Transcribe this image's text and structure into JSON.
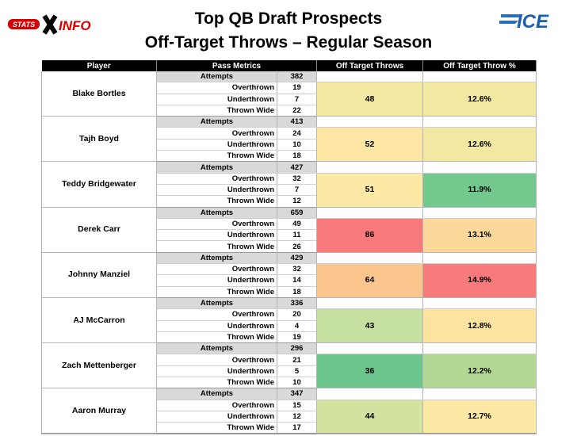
{
  "header": {
    "left_logo_text": "STATS INFO",
    "right_logo_text": "ICE",
    "title_line1": "Top QB Draft Prospects",
    "title_line2": "Off-Target Throws – Regular Season"
  },
  "columns": {
    "player": "Player",
    "pass_metrics": "Pass Metrics",
    "off_target": "Off Target Throws",
    "off_target_pct": "Off Target Throw %"
  },
  "metric_labels": {
    "attempts": "Attempts",
    "overthrown": "Overthrown",
    "underthrown": "Underthrown",
    "thrown_wide": "Thrown Wide"
  },
  "players": [
    {
      "name": "Blake Bortles",
      "attempts": "382",
      "overthrown": "19",
      "underthrown": "7",
      "thrown_wide": "22",
      "off_target": "48",
      "pct": "12.6%",
      "off_color": "#f2e8a2",
      "pct_color": "#f2e8a2"
    },
    {
      "name": "Tajh Boyd",
      "attempts": "413",
      "overthrown": "24",
      "underthrown": "10",
      "thrown_wide": "18",
      "off_target": "52",
      "pct": "12.6%",
      "off_color": "#fde6a4",
      "pct_color": "#f2e8a2"
    },
    {
      "name": "Teddy Bridgewater",
      "attempts": "427",
      "overthrown": "32",
      "underthrown": "7",
      "thrown_wide": "12",
      "off_target": "51",
      "pct": "11.9%",
      "off_color": "#fde9a6",
      "pct_color": "#73c88e"
    },
    {
      "name": "Derek Carr",
      "attempts": "659",
      "overthrown": "49",
      "underthrown": "11",
      "thrown_wide": "26",
      "off_target": "86",
      "pct": "13.1%",
      "off_color": "#f87a7a",
      "pct_color": "#fcd89a"
    },
    {
      "name": "Johnny Manziel",
      "attempts": "429",
      "overthrown": "32",
      "underthrown": "14",
      "thrown_wide": "18",
      "off_target": "64",
      "pct": "14.9%",
      "off_color": "#fbc58e",
      "pct_color": "#f87a7a"
    },
    {
      "name": "AJ McCarron",
      "attempts": "336",
      "overthrown": "20",
      "underthrown": "4",
      "thrown_wide": "19",
      "off_target": "43",
      "pct": "12.8%",
      "off_color": "#c5e0a0",
      "pct_color": "#fde3a0"
    },
    {
      "name": "Zach Mettenberger",
      "attempts": "296",
      "overthrown": "21",
      "underthrown": "5",
      "thrown_wide": "10",
      "off_target": "36",
      "pct": "12.2%",
      "off_color": "#6cc58c",
      "pct_color": "#b2d994"
    },
    {
      "name": "Aaron Murray",
      "attempts": "347",
      "overthrown": "15",
      "underthrown": "12",
      "thrown_wide": "17",
      "off_target": "44",
      "pct": "12.7%",
      "off_color": "#d3e39f",
      "pct_color": "#fbe9a5"
    }
  ]
}
